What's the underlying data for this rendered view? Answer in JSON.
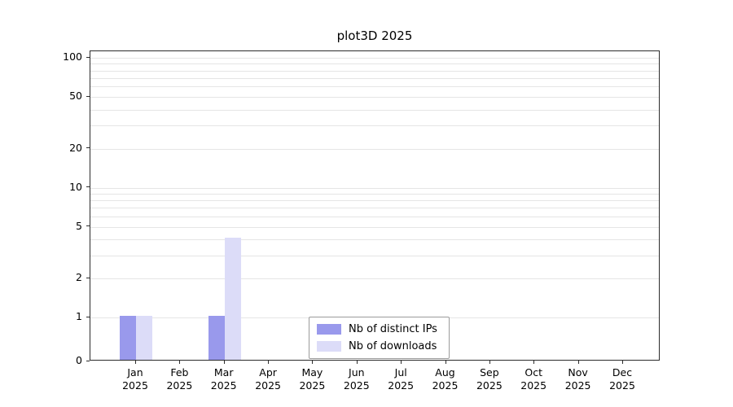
{
  "title": "plot3D 2025",
  "chart_data": {
    "type": "bar",
    "title": "plot3D 2025",
    "categories": [
      "Jan",
      "Feb",
      "Mar",
      "Apr",
      "May",
      "Jun",
      "Jul",
      "Aug",
      "Sep",
      "Oct",
      "Nov",
      "Dec"
    ],
    "year": "2025",
    "series": [
      {
        "name": "Nb of distinct IPs",
        "color": "#9999ec",
        "values": [
          1,
          0,
          1,
          0,
          0,
          0,
          0,
          0,
          0,
          0,
          0,
          0
        ]
      },
      {
        "name": "Nb of downloads",
        "color": "#dcdcf8",
        "values": [
          1,
          0,
          4,
          0,
          0,
          0,
          0,
          0,
          0,
          0,
          0,
          0
        ]
      }
    ],
    "xlabel": "",
    "ylabel": "",
    "yscale": "log",
    "yticks": [
      0,
      1,
      2,
      5,
      10,
      20,
      50,
      100
    ],
    "ylim": [
      0,
      100
    ],
    "grid": "horizontal-minor-log",
    "legend_position": "bottom-center-inside"
  }
}
